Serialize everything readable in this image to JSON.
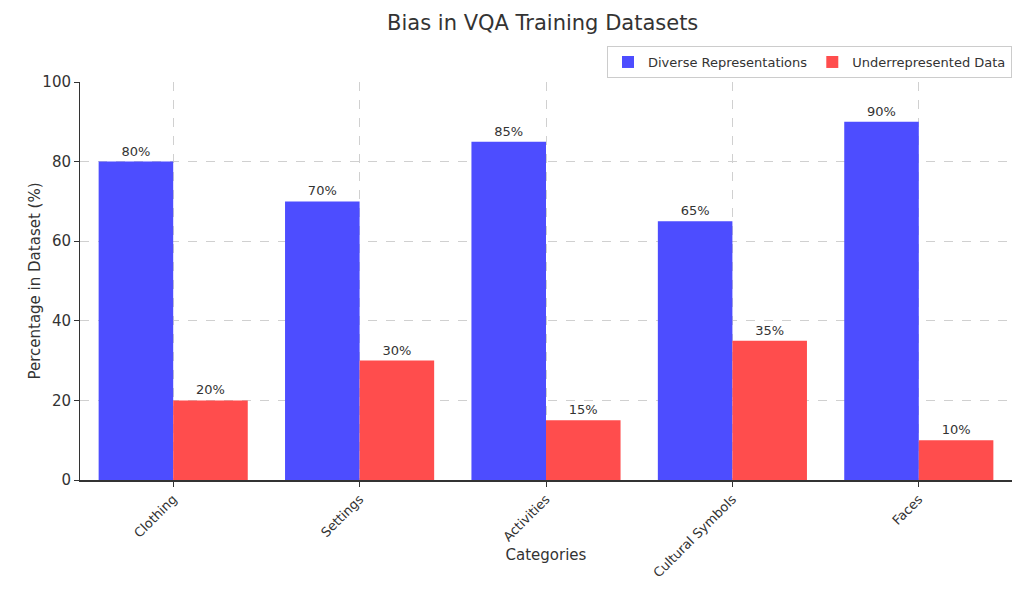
{
  "chart_data": {
    "type": "bar",
    "title": "Bias in VQA Training Datasets",
    "x_label": "Categories",
    "y_label": "Percentage in Dataset (%)",
    "categories": [
      "Clothing",
      "Settings",
      "Activities",
      "Cultural Symbols",
      "Faces"
    ],
    "series": [
      {
        "name": "Diverse Representations",
        "color": "#4d4dff",
        "values": [
          80,
          70,
          85,
          65,
          90
        ],
        "value_labels": [
          "80%",
          "70%",
          "85%",
          "65%",
          "90%"
        ]
      },
      {
        "name": "Underrepresented Data",
        "color": "#ff4d4d",
        "values": [
          20,
          30,
          15,
          35,
          10
        ],
        "value_labels": [
          "20%",
          "30%",
          "15%",
          "35%",
          "10%"
        ]
      }
    ],
    "ylim": [
      0,
      100
    ],
    "yticks": [
      0,
      20,
      40,
      60,
      80,
      100
    ],
    "grid": true,
    "legend": "upper right",
    "data_labels": true
  }
}
